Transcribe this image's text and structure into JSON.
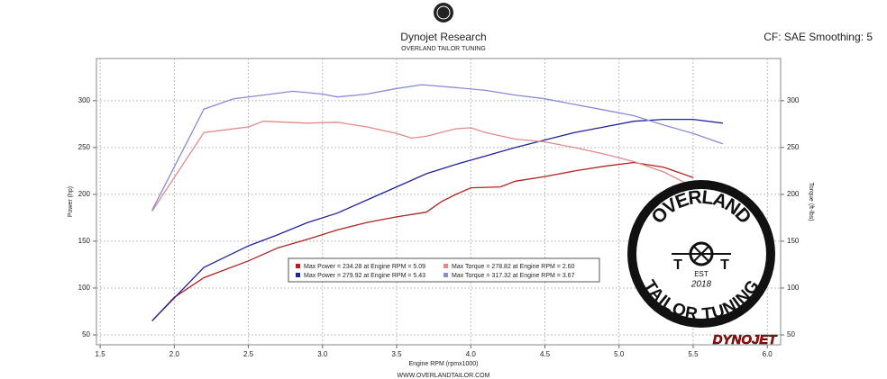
{
  "chart_data": {
    "type": "line",
    "title": "Dynojet Research",
    "subtitle": "OVERLAND TAILOR TUNING",
    "corner_note": "CF: SAE Smoothing: 5",
    "x_label": "Engine RPM (rpmx1000)",
    "footer": "WWW.OVERLANDTAILOR.COM",
    "y_label": "Power (hp)",
    "y2_label": "Torque (ft-lbs)",
    "annotations": [
      "OVERLAND",
      "T",
      "T",
      "EST",
      "2018",
      "TAILOR TUNING",
      "DYNOJET"
    ],
    "xlim": [
      1.475,
      6.09
    ],
    "xticks": [
      1.5,
      {
        "value": 2,
        "label": "2.0"
      },
      2.5,
      {
        "value": 3,
        "label": "3.0"
      },
      3.5,
      {
        "value": 4,
        "label": "4.0"
      },
      4.5,
      {
        "value": 5,
        "label": "5.0"
      },
      5.5,
      {
        "value": 6,
        "label": "6.0"
      }
    ],
    "ylim": [
      39.4,
      345
    ],
    "yticks": [
      50,
      100,
      150,
      200,
      250,
      300
    ],
    "y2lim": [
      39.4,
      345
    ],
    "y2ticks": [
      50,
      100,
      150,
      200,
      250,
      300
    ],
    "grid": true,
    "series": [
      {
        "name": "Max Power = 234.28 at Engine RPM = 5.09",
        "color": "#b22222",
        "x": [
          1.85,
          2.0,
          2.2,
          2.5,
          2.7,
          2.9,
          3.1,
          3.3,
          3.5,
          3.7,
          3.8,
          3.9,
          4.0,
          4.2,
          4.3,
          4.5,
          4.7,
          4.9,
          5.1,
          5.3,
          5.5
        ],
        "values": [
          65,
          90,
          111,
          129,
          143,
          152,
          162,
          170,
          176,
          181,
          192,
          200,
          207,
          208,
          214,
          219,
          225,
          230,
          234,
          229,
          218
        ]
      },
      {
        "name": "Max Power = 279.92 at Engine RPM = 5.43",
        "color": "#22229a",
        "x": [
          1.85,
          2.2,
          2.5,
          2.7,
          2.9,
          3.1,
          3.3,
          3.5,
          3.7,
          3.9,
          4.1,
          4.3,
          4.5,
          4.7,
          4.9,
          5.1,
          5.3,
          5.5,
          5.7
        ],
        "values": [
          65,
          122,
          145,
          157,
          170,
          180,
          194,
          208,
          222,
          232,
          241,
          250,
          258,
          266,
          272,
          278,
          280,
          280,
          276
        ]
      },
      {
        "name": "Max Torque = 278.82 at Engine RPM = 2.60",
        "color": "#e08a8a",
        "axis": "y2",
        "x": [
          1.85,
          2.2,
          2.5,
          2.6,
          2.9,
          3.1,
          3.3,
          3.5,
          3.6,
          3.7,
          3.9,
          4.0,
          4.1,
          4.3,
          4.5,
          4.7,
          4.9,
          5.1,
          5.3,
          5.5
        ],
        "values": [
          182,
          266,
          272,
          278,
          276,
          277,
          272,
          265,
          260,
          262,
          270,
          271,
          266,
          259,
          256,
          250,
          243,
          235,
          224,
          208
        ]
      },
      {
        "name": "Max Torque = 317.32 at Engine RPM = 3.67",
        "color": "#8a8ad6",
        "axis": "y2",
        "x": [
          1.85,
          2.2,
          2.4,
          2.6,
          2.8,
          3.0,
          3.1,
          3.3,
          3.5,
          3.67,
          3.9,
          4.1,
          4.3,
          4.5,
          4.7,
          4.9,
          5.1,
          5.3,
          5.5,
          5.7
        ],
        "values": [
          183,
          291,
          302,
          306,
          310,
          307,
          304,
          307,
          313,
          317,
          314,
          311,
          306,
          302,
          296,
          290,
          284,
          274,
          265,
          254
        ]
      }
    ]
  }
}
